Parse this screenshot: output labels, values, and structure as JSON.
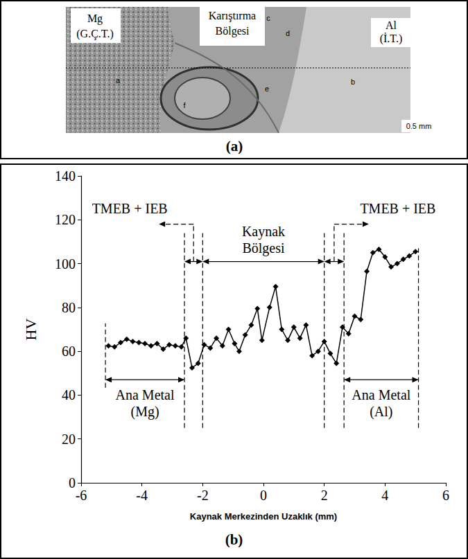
{
  "panel_a": {
    "label": "(a)",
    "texts": {
      "left": [
        "Mg",
        "(G.Ç.T.)"
      ],
      "middle": [
        "Karıştırma",
        "Bölgesi"
      ],
      "right": [
        "Al",
        "(İ.T.)"
      ]
    },
    "letters": [
      "a",
      "b",
      "c",
      "d",
      "e",
      "f"
    ],
    "scale_bar": "0.5 mm"
  },
  "chart_data": {
    "type": "line",
    "panel_label": "(b)",
    "x_label": "Kaynak Merkezinden Uzaklık (mm)",
    "y_label": "HV",
    "x": [
      -5.1,
      -4.9,
      -4.7,
      -4.5,
      -4.3,
      -4.1,
      -3.9,
      -3.7,
      -3.5,
      -3.3,
      -3.1,
      -2.9,
      -2.7,
      -2.55,
      -2.35,
      -2.15,
      -1.95,
      -1.75,
      -1.55,
      -1.35,
      -1.15,
      -0.95,
      -0.8,
      -0.6,
      -0.4,
      -0.2,
      -0.05,
      0.2,
      0.4,
      0.6,
      0.8,
      1.0,
      1.2,
      1.4,
      1.6,
      1.8,
      2.0,
      2.2,
      2.4,
      2.6,
      2.8,
      3.0,
      3.2,
      3.4,
      3.6,
      3.8,
      4.0,
      4.2,
      4.4,
      4.6,
      4.8,
      5.0
    ],
    "values": [
      62.5,
      62,
      64,
      65.5,
      64.5,
      64,
      63.5,
      62.5,
      63.5,
      61,
      63,
      62.5,
      62,
      66,
      52.5,
      54.5,
      63,
      61.5,
      66,
      62.5,
      70,
      63.5,
      60,
      67.5,
      72,
      79.5,
      65,
      80,
      89.5,
      70,
      65,
      71,
      66,
      72,
      58,
      60,
      64.5,
      59,
      54.5,
      71,
      68,
      76,
      74.5,
      96.5,
      105,
      106.5,
      103,
      98.5,
      100,
      102,
      103.5,
      105.5
    ],
    "color": "#000000",
    "marker": "diamond",
    "xlim": [
      -6,
      6
    ],
    "xticks": [
      -6,
      -4,
      -2,
      0,
      2,
      4,
      6
    ],
    "ylim": [
      0,
      140
    ],
    "yticks": [
      0,
      20,
      40,
      60,
      80,
      100,
      120,
      140
    ],
    "grid": false,
    "regions": [
      {
        "label": "Ana Metal\n(Mg)",
        "x": [
          -5.2,
          -2.6
        ]
      },
      {
        "label": "TMEB + IEB",
        "x": [
          -2.6,
          -2.0
        ]
      },
      {
        "label": "Kaynak\nBölgesi",
        "x": [
          -2.0,
          2.0
        ]
      },
      {
        "label": "TMEB + IEB",
        "x": [
          2.0,
          2.65
        ]
      },
      {
        "label": "Ana Metal\n(Al)",
        "x": [
          2.65,
          5.1
        ]
      }
    ]
  }
}
